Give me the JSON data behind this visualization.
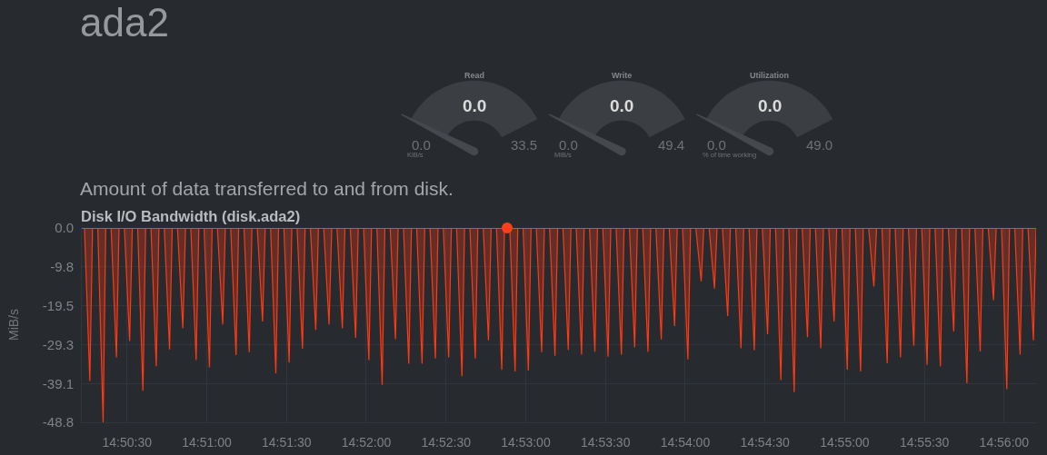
{
  "chart_data": [
    {
      "type": "other",
      "title": "ada2"
    },
    {
      "type": "other",
      "title": "Read",
      "values": [
        0.0,
        0.0,
        33.5
      ],
      "value_labels": [
        "0.0",
        "0.0",
        "33.5"
      ],
      "xlabel": "KiB/s",
      "color": "#3b3e43"
    },
    {
      "type": "other",
      "title": "Write",
      "values": [
        0.0,
        0.0,
        49.4
      ],
      "value_labels": [
        "0.0",
        "0.0",
        "49.4"
      ],
      "xlabel": "MiB/s",
      "color": "#3b3e43"
    },
    {
      "type": "other",
      "title": "Utilization",
      "values": [
        0.0,
        0.0,
        49.0
      ],
      "value_labels": [
        "0.0",
        "0.0",
        "49.0"
      ],
      "xlabel": "% of time working",
      "color": "#3b3e43"
    },
    {
      "type": "area",
      "title": "Disk I/O Bandwidth (disk.ada2)",
      "ylabel": "MiB/s",
      "annotations": [
        "Amount of data transferred to and from disk."
      ],
      "x": [
        14.83722,
        14.83778,
        14.83806,
        14.83861,
        14.83917,
        14.83944,
        14.84,
        14.84056,
        14.84083,
        14.84139,
        14.84194,
        14.84222,
        14.84278,
        14.84333,
        14.84361,
        14.84417,
        14.84472,
        14.845,
        14.84556,
        14.84611,
        14.84639,
        14.84694,
        14.8475,
        14.84778,
        14.84833,
        14.84889,
        14.84917,
        14.84972,
        14.85028,
        14.85056,
        14.85111,
        14.85167,
        14.85194,
        14.8525,
        14.85306,
        14.85333,
        14.85389,
        14.85444,
        14.85472,
        14.85528,
        14.85583,
        14.85611,
        14.85667,
        14.85722,
        14.8575,
        14.85806,
        14.85861,
        14.85889,
        14.85944,
        14.86,
        14.86028,
        14.86083,
        14.86139,
        14.86167,
        14.86222,
        14.86278,
        14.86306,
        14.86361,
        14.86417,
        14.86444,
        14.865,
        14.86556,
        14.86583,
        14.86639,
        14.86694,
        14.86722,
        14.86778,
        14.86833,
        14.86861,
        14.86917,
        14.86972,
        14.87,
        14.87056,
        14.87111,
        14.87139,
        14.87194,
        14.8725,
        14.87278,
        14.87333,
        14.87389,
        14.87417,
        14.87472,
        14.87528,
        14.87556,
        14.87611,
        14.87667,
        14.87694,
        14.8775,
        14.87806,
        14.87833,
        14.87889,
        14.87944,
        14.87972,
        14.88028,
        14.88083,
        14.88111,
        14.88167,
        14.88222,
        14.8825,
        14.88306,
        14.88361,
        14.88389,
        14.88444,
        14.885,
        14.88528,
        14.88583,
        14.88639,
        14.88667,
        14.88722,
        14.88778,
        14.88806,
        14.88861,
        14.88917,
        14.88944,
        14.89,
        14.89056,
        14.89083,
        14.89139,
        14.89194,
        14.89222,
        14.89278,
        14.89333,
        14.89361,
        14.89417,
        14.89472,
        14.895,
        14.89556,
        14.89611,
        14.89639,
        14.89694,
        14.8975,
        14.89778,
        14.89833,
        14.89889,
        14.89917,
        14.89972,
        14.90028,
        14.90056,
        14.90111,
        14.90167,
        14.90194,
        14.9025,
        14.90306,
        14.90333,
        14.90389,
        14.90444,
        14.90472,
        14.90528,
        14.90583,
        14.90611,
        14.90667,
        14.90722,
        14.9075,
        14.90806,
        14.90861,
        14.90889,
        14.90944,
        14.91,
        14.91028,
        14.91083,
        14.91139,
        14.91167,
        14.91222,
        14.91278,
        14.91306,
        14.91361,
        14.91417,
        14.91444,
        14.915,
        14.91556,
        14.91583,
        14.91639,
        14.91694,
        14.91722,
        14.91778,
        14.91833,
        14.91861,
        14.91917,
        14.91972,
        14.92,
        14.92056,
        14.92111,
        14.92139,
        14.92194,
        14.9225,
        14.92278,
        14.92333,
        14.92389,
        14.92417,
        14.92472,
        14.92528,
        14.92556,
        14.92611,
        14.92667,
        14.92694,
        14.9275,
        14.92806,
        14.92833,
        14.92889,
        14.92944,
        14.92972,
        14.93028,
        14.93083,
        14.93111,
        14.93167,
        14.93222,
        14.9325,
        14.93306,
        14.93361,
        14.93389,
        14.93444,
        14.935,
        14.93528,
        14.93583,
        14.93639,
        14.93667
      ],
      "series": [
        {
          "type": "area",
          "color": "#ff3912",
          "values": [
            0,
            -38.4,
            0,
            0,
            -48.8,
            0,
            0,
            -32.5,
            0,
            0,
            -28.4,
            0,
            0,
            -40.9,
            0,
            0,
            -34.7,
            0,
            0,
            -30.5,
            0,
            0,
            -25.2,
            0,
            0,
            -33.2,
            0,
            0,
            -35.0,
            0,
            0,
            -24.2,
            0,
            0,
            -31.9,
            0,
            0,
            -31.2,
            0,
            0,
            -23.5,
            0,
            0,
            -36.5,
            0,
            0,
            -33.8,
            0,
            0,
            -30.3,
            0,
            0,
            -25.6,
            0,
            0,
            -24.2,
            0,
            0,
            -25.2,
            0,
            0,
            -27.6,
            0,
            0,
            -33.2,
            0,
            0,
            -39.4,
            0,
            0,
            -27.9,
            0,
            0,
            -34.1,
            0,
            0,
            -34.1,
            0,
            0,
            -32.8,
            0,
            0,
            -32.5,
            0,
            0,
            -37.2,
            0,
            0,
            -32.8,
            0,
            0,
            -28.2,
            0,
            0,
            -35.6,
            0,
            0,
            -36.0,
            0,
            0,
            -35.8,
            0,
            0,
            -31.2,
            0,
            0,
            -32.1,
            0,
            0,
            -30.6,
            0,
            0,
            -31.8,
            0,
            0,
            -31.1,
            0,
            0,
            -32.3,
            0,
            0,
            -31.8,
            0,
            0,
            -30.0,
            0,
            0,
            -31.1,
            0,
            0,
            -28.0,
            0,
            0,
            -24.6,
            0,
            0,
            -33.0,
            0,
            0,
            -13.4,
            0,
            0,
            -15.2,
            0,
            0,
            -22.1,
            0,
            0,
            -30.2,
            0,
            0,
            -30.7,
            0,
            0,
            -26.7,
            0,
            0,
            -38.2,
            0,
            0,
            -41.2,
            0,
            0,
            -27.4,
            0,
            0,
            -30.2,
            0,
            0,
            -23.5,
            0,
            0,
            -35.6,
            0,
            0,
            -36.0,
            0,
            0,
            -14.7,
            0,
            0,
            -34.0,
            0,
            0,
            -32.5,
            0,
            0,
            -29.6,
            0,
            0,
            -34.4,
            0,
            0,
            -34.7,
            0,
            0,
            -26.0,
            0,
            0,
            -39.0,
            0,
            0,
            -31.0,
            0,
            0,
            -18.1,
            0,
            0,
            -40.5,
            0,
            0,
            -31.8,
            0,
            0,
            -28.2,
            0
          ]
        },
        {
          "type": "line",
          "color": "#5c9410",
          "x": [
            14.83694,
            14.93667
          ],
          "values": [
            0,
            0
          ]
        },
        {
          "type": "scatter",
          "color": "#f8401c",
          "marker": "circle",
          "x": [
            14.88139
          ],
          "values": [
            0
          ]
        }
      ],
      "xlim": [
        14.83694,
        14.93667
      ],
      "xticks": [
        {
          "value": 14.841667,
          "label": "14:50:30"
        },
        {
          "value": 14.85,
          "label": "14:51:00"
        },
        {
          "value": 14.858333,
          "label": "14:51:30"
        },
        {
          "value": 14.866667,
          "label": "14:52:00"
        },
        {
          "value": 14.875,
          "label": "14:52:30"
        },
        {
          "value": 14.883333,
          "label": "14:53:00"
        },
        {
          "value": 14.891667,
          "label": "14:53:30"
        },
        {
          "value": 14.9,
          "label": "14:54:00"
        },
        {
          "value": 14.908333,
          "label": "14:54:30"
        },
        {
          "value": 14.916667,
          "label": "14:55:00"
        },
        {
          "value": 14.925,
          "label": "14:55:30"
        },
        {
          "value": 14.933333,
          "label": "14:56:00"
        }
      ],
      "ylim": [
        -48.8,
        0
      ],
      "yticks": [
        {
          "value": 0,
          "label": "0.0"
        },
        -9.8,
        -19.5,
        -29.3,
        -39.1,
        -48.8
      ],
      "grid": true
    }
  ]
}
